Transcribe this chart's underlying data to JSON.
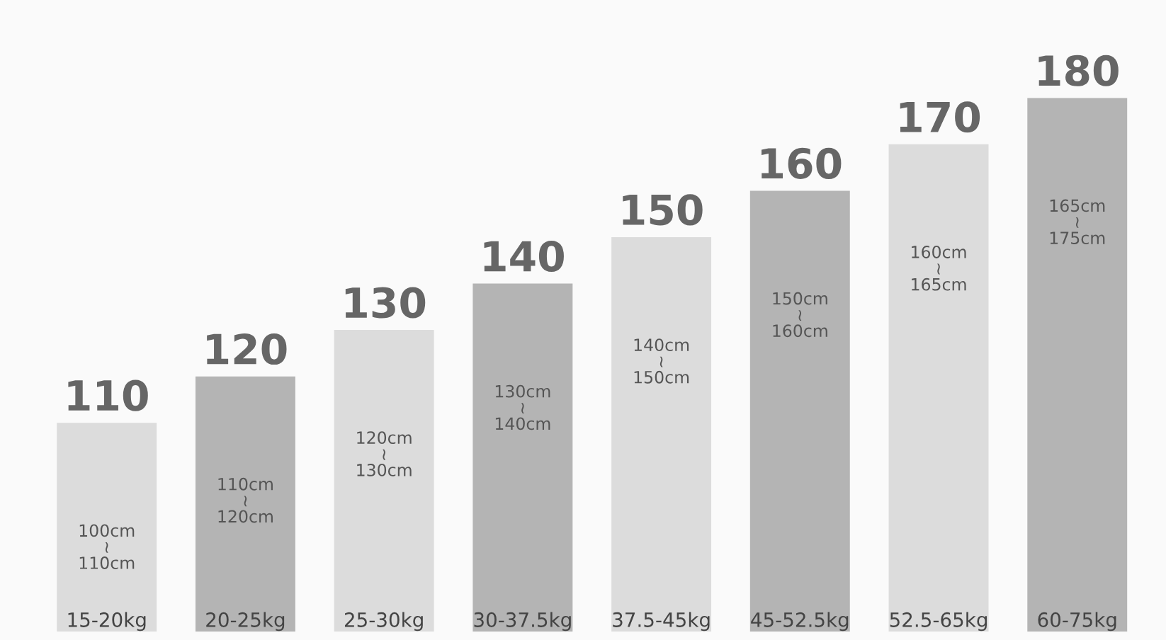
{
  "chart_data": {
    "type": "bar",
    "categories": [
      "15-20kg",
      "20-25kg",
      "25-30kg",
      "30-37.5kg",
      "37.5-45kg",
      "45-52.5kg",
      "52.5-65kg",
      "60-75kg"
    ],
    "values": [
      110,
      120,
      130,
      140,
      150,
      160,
      170,
      180
    ],
    "colors": [
      "#dcdcdc",
      "#b4b4b4",
      "#dcdcdc",
      "#b4b4b4",
      "#dcdcdc",
      "#b4b4b4",
      "#dcdcdc",
      "#b4b4b4"
    ],
    "data_labels": true,
    "ylim": [
      65,
      180
    ],
    "annotations": [
      "100cm\n≀\n110cm",
      "110cm\n≀\n120cm",
      "120cm\n≀\n130cm",
      "130cm\n≀\n140cm",
      "140cm\n≀\n150cm",
      "150cm\n≀\n160cm",
      "160cm\n≀\n165cm",
      "165cm\n≀\n175cm"
    ]
  }
}
